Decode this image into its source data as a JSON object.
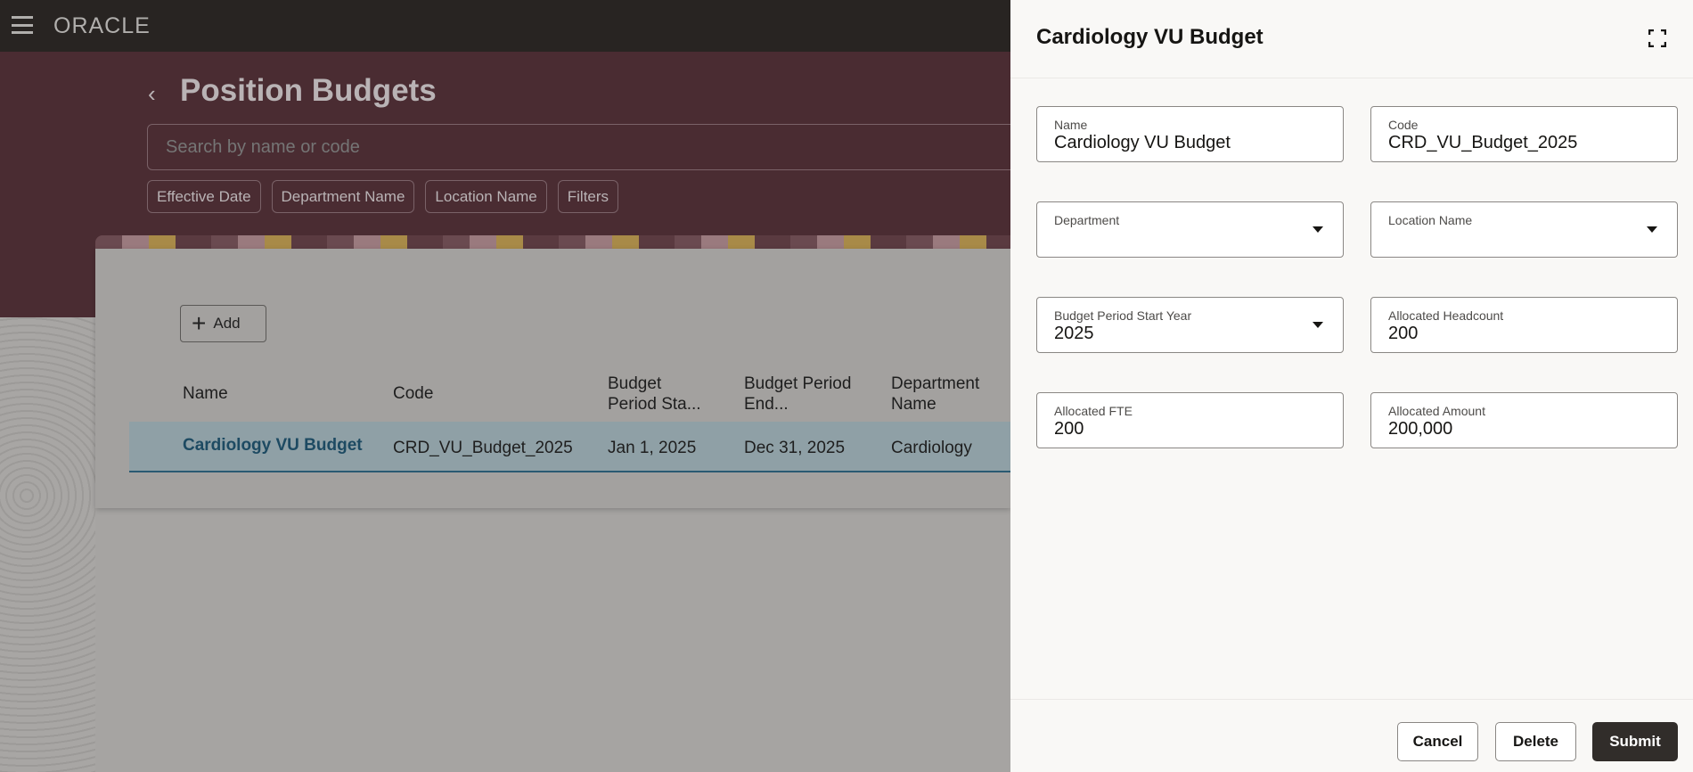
{
  "topbar": {
    "logo": "ORACLE",
    "menu_icon": "hamburger-icon"
  },
  "page": {
    "title": "Position Budgets",
    "search_placeholder": "Search by name or code",
    "filters": [
      "Effective Date",
      "Department Name",
      "Location Name",
      "Filters"
    ],
    "add_label": "Add",
    "table": {
      "headers": [
        "Name",
        "Code",
        "Budget Period Sta...",
        "Budget Period End...",
        "Department Name"
      ],
      "rows": [
        [
          "Cardiology VU Budget",
          "CRD_VU_Budget_2025",
          "Jan 1, 2025",
          "Dec 31, 2025",
          "Cardiology"
        ]
      ]
    }
  },
  "panel": {
    "title": "Cardiology VU Budget",
    "fields": [
      {
        "label": "Name",
        "value": "Cardiology VU Budget"
      },
      {
        "label": "Code",
        "value": "CRD_VU_Budget_2025"
      },
      {
        "label": "Department",
        "value": ""
      },
      {
        "label": "Location Name",
        "value": ""
      },
      {
        "label": "Budget Period Start Year",
        "value": "2025"
      },
      {
        "label": "Allocated Headcount",
        "value": "200"
      },
      {
        "label": "Allocated FTE",
        "value": "200"
      },
      {
        "label": "Allocated Amount",
        "value": "200,000"
      }
    ],
    "buttons": {
      "cancel": "Cancel",
      "delete": "Delete",
      "submit": "Submit"
    }
  },
  "colors": {
    "accent_link": "#1d4a62",
    "primary_button": "#312d2a",
    "hero": "#4a2c32"
  }
}
